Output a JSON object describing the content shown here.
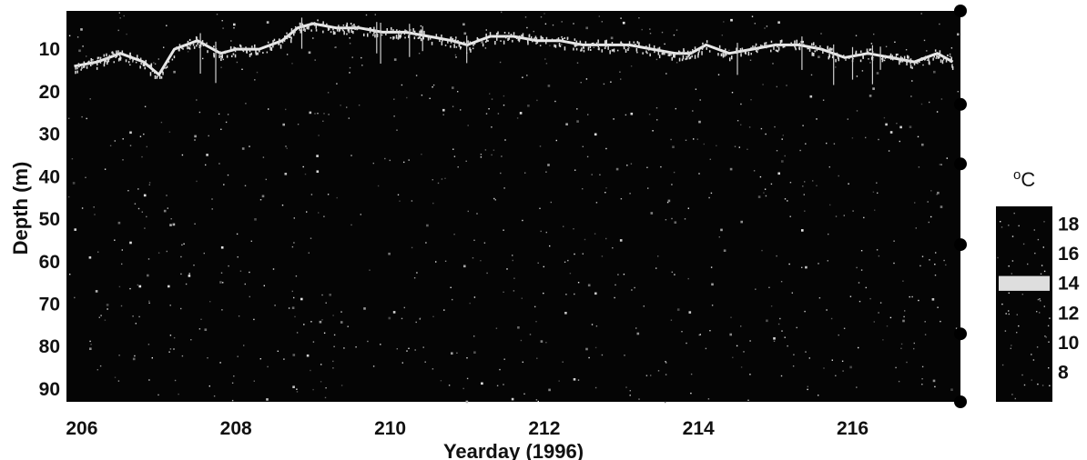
{
  "chart_data": {
    "type": "heatmap",
    "title": "",
    "xlabel": "Yearday (1996)",
    "ylabel": "Depth (m)",
    "xlim": [
      205.8,
      217.4
    ],
    "ylim": [
      1,
      93
    ],
    "y_inverted": true,
    "x_ticks": [
      "206",
      "208",
      "210",
      "212",
      "214",
      "216"
    ],
    "y_ticks": [
      "10",
      "20",
      "30",
      "40",
      "50",
      "60",
      "70",
      "80",
      "90"
    ],
    "colorbar": {
      "unit_superscript": "o",
      "unit": "C",
      "ticks": [
        "18",
        "16",
        "14",
        "12",
        "10",
        "8"
      ],
      "range": [
        6,
        19.2
      ],
      "highlight_band": [
        13.5,
        14.5
      ]
    },
    "isotherm_14C": {
      "description_value": 14,
      "x": [
        205.9,
        206.2,
        206.5,
        206.8,
        207.0,
        207.2,
        207.5,
        207.8,
        208.0,
        208.3,
        208.6,
        208.8,
        209.0,
        209.3,
        209.6,
        209.9,
        210.2,
        210.5,
        210.8,
        211.0,
        211.3,
        211.6,
        211.9,
        212.2,
        212.5,
        212.8,
        213.1,
        213.4,
        213.7,
        213.9,
        214.1,
        214.4,
        214.7,
        215.0,
        215.3,
        215.6,
        215.9,
        216.2,
        216.5,
        216.8,
        217.1,
        217.3
      ],
      "depth": [
        14,
        13,
        11,
        13,
        16,
        10,
        8,
        11,
        10,
        10,
        8,
        5,
        4,
        5,
        5,
        6,
        6,
        7,
        8,
        9,
        7,
        7,
        8,
        8,
        9,
        9,
        9,
        10,
        11,
        11,
        9,
        11,
        10,
        9,
        9,
        10,
        12,
        11,
        12,
        13,
        11,
        13
      ]
    },
    "mooring_sensor_depths": [
      1,
      23,
      37,
      56,
      77,
      93
    ],
    "grid": false,
    "legend": "none"
  }
}
